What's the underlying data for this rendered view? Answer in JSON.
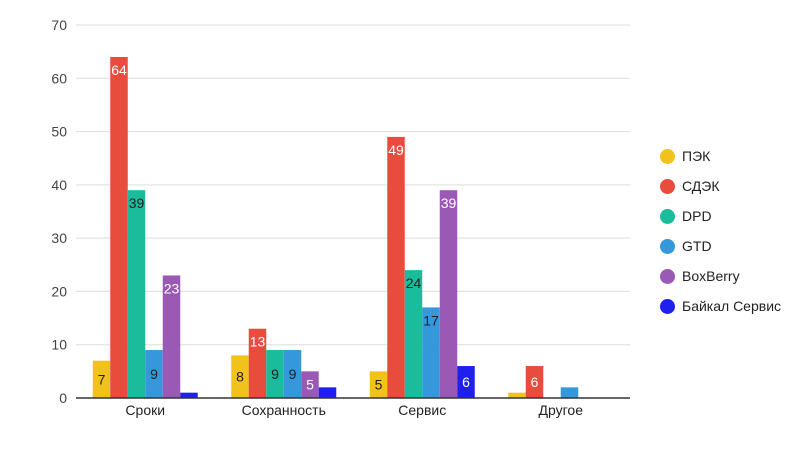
{
  "chart_data": {
    "type": "bar",
    "categories": [
      "Сроки",
      "Сохранность",
      "Сервис",
      "Другое"
    ],
    "series": [
      {
        "name": "ПЭК",
        "color": "#f1c21b",
        "values": [
          7,
          8,
          5,
          1
        ],
        "labels": [
          "7",
          "8",
          "5",
          ""
        ]
      },
      {
        "name": "СДЭК",
        "color": "#e74c3c",
        "values": [
          64,
          13,
          49,
          6
        ],
        "labels": [
          "64",
          "13",
          "49",
          "6"
        ]
      },
      {
        "name": "DPD",
        "color": "#1abc9c",
        "values": [
          39,
          9,
          24,
          0
        ],
        "labels": [
          "39",
          "9",
          "24",
          ""
        ]
      },
      {
        "name": "GTD",
        "color": "#3498db",
        "values": [
          9,
          9,
          17,
          2
        ],
        "labels": [
          "9",
          "9",
          "17",
          ""
        ]
      },
      {
        "name": "BoxBerry",
        "color": "#9b59b6",
        "values": [
          23,
          5,
          39,
          0
        ],
        "labels": [
          "23",
          "5",
          "39",
          ""
        ]
      },
      {
        "name": "Байкал Сервис",
        "color": "#2020ee",
        "values": [
          1,
          2,
          6,
          0
        ],
        "labels": [
          "",
          "",
          "6",
          ""
        ]
      }
    ],
    "yticks": [
      "0",
      "10",
      "20",
      "30",
      "40",
      "50",
      "60",
      "70"
    ],
    "ylim": [
      0,
      70
    ],
    "grid": true,
    "legend_position": "right"
  }
}
